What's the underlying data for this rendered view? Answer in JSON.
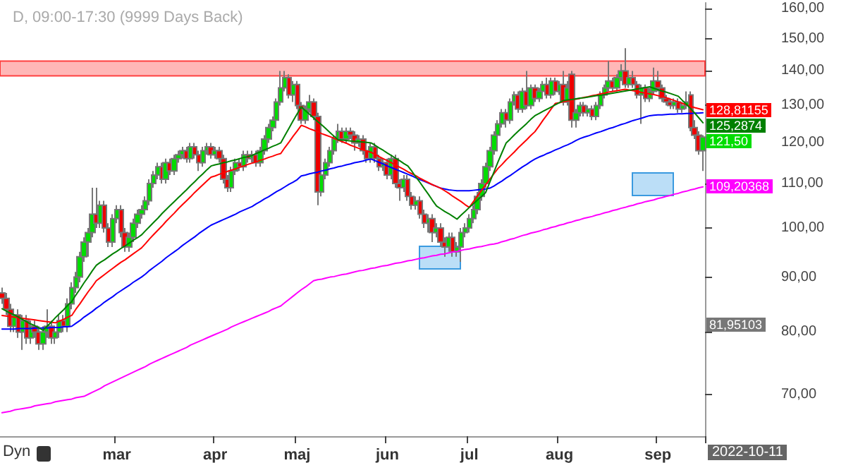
{
  "chart_data": {
    "type": "candlestick",
    "title": "D, 09:00-17:30 (9999 Days Back)",
    "categories": [
      null,
      null,
      null,
      null,
      null,
      null,
      null,
      null,
      null,
      null,
      null,
      null,
      null,
      null,
      null,
      null,
      null,
      null,
      null,
      null,
      null,
      null,
      null,
      null,
      null,
      null,
      null,
      null,
      "mar",
      null,
      null,
      null,
      null,
      null,
      null,
      null,
      null,
      null,
      null,
      null,
      null,
      null,
      null,
      null,
      null,
      null,
      null,
      null,
      null,
      null,
      null,
      null,
      "apr",
      null,
      null,
      null,
      null,
      null,
      null,
      null,
      null,
      null,
      null,
      null,
      null,
      null,
      null,
      null,
      null,
      null,
      null,
      null,
      "maj",
      null,
      null,
      null,
      null,
      null,
      null,
      null,
      null,
      null,
      null,
      null,
      null,
      null,
      null,
      null,
      null,
      null,
      null,
      null,
      null,
      null,
      "jun",
      null,
      null,
      null,
      null,
      null,
      null,
      null,
      null,
      null,
      null,
      null,
      null,
      null,
      null,
      null,
      null,
      null,
      null,
      null,
      "jul",
      null,
      null,
      null,
      null,
      null,
      null,
      null,
      null,
      null,
      null,
      null,
      null,
      null,
      null,
      null,
      null,
      null,
      null,
      null,
      null,
      null,
      "aug",
      null,
      null,
      null,
      null,
      null,
      null,
      null,
      null,
      null,
      null,
      null,
      null,
      null,
      null,
      null,
      null,
      null,
      null,
      null,
      null,
      null,
      null,
      null,
      "sep",
      null,
      null,
      null,
      null,
      null,
      null,
      null,
      null,
      null,
      null,
      null
    ],
    "ohlc": [
      [
        87,
        88,
        85,
        86
      ],
      [
        86,
        87,
        83,
        84
      ],
      [
        84,
        85,
        80,
        81
      ],
      [
        81,
        84,
        80,
        83
      ],
      [
        83,
        84,
        79,
        80
      ],
      [
        80,
        83,
        77,
        82
      ],
      [
        82,
        83,
        78,
        79
      ],
      [
        79,
        82,
        78,
        81
      ],
      [
        81,
        82,
        79,
        80
      ],
      [
        80,
        81,
        77,
        78
      ],
      [
        78,
        81,
        77,
        80
      ],
      [
        80,
        84,
        79,
        81
      ],
      [
        81,
        82,
        78,
        79
      ],
      [
        79,
        81,
        78,
        80
      ],
      [
        80,
        83,
        79,
        82
      ],
      [
        82,
        83,
        80,
        81
      ],
      [
        81,
        86,
        80,
        85
      ],
      [
        85,
        89,
        84,
        88
      ],
      [
        88,
        91,
        87,
        90
      ],
      [
        90,
        95,
        89,
        94
      ],
      [
        94,
        98,
        93,
        97
      ],
      [
        97,
        100,
        94,
        99
      ],
      [
        99,
        109,
        98,
        103
      ],
      [
        103,
        109,
        100,
        101
      ],
      [
        101,
        106,
        100,
        105
      ],
      [
        105,
        106,
        99,
        100
      ],
      [
        100,
        101,
        96,
        97
      ],
      [
        97,
        103,
        96,
        102
      ],
      [
        102,
        105,
        101,
        104
      ],
      [
        104,
        105,
        98,
        99
      ],
      [
        99,
        100,
        95,
        96
      ],
      [
        96,
        99,
        95,
        98
      ],
      [
        98,
        102,
        97,
        101
      ],
      [
        101,
        104,
        100,
        103
      ],
      [
        103,
        105,
        102,
        104
      ],
      [
        104,
        107,
        103,
        106
      ],
      [
        106,
        111,
        105,
        110
      ],
      [
        110,
        113,
        109,
        112
      ],
      [
        112,
        115,
        111,
        114
      ],
      [
        114,
        115,
        110,
        111
      ],
      [
        111,
        116,
        110,
        115
      ],
      [
        115,
        116,
        112,
        113
      ],
      [
        113,
        117,
        112,
        116
      ],
      [
        116,
        118,
        115,
        117
      ],
      [
        117,
        119,
        116,
        118
      ],
      [
        118,
        119,
        115,
        116
      ],
      [
        116,
        120,
        115,
        119
      ],
      [
        119,
        120,
        116,
        117
      ],
      [
        117,
        118,
        113,
        115
      ],
      [
        115,
        119,
        114,
        118
      ],
      [
        118,
        120,
        117,
        119
      ],
      [
        119,
        120,
        116,
        117
      ],
      [
        117,
        119,
        116,
        118
      ],
      [
        118,
        119,
        115,
        116
      ],
      [
        116,
        117,
        110,
        111
      ],
      [
        111,
        112,
        108,
        109
      ],
      [
        109,
        114,
        108,
        113
      ],
      [
        113,
        116,
        112,
        115
      ],
      [
        115,
        116,
        113,
        114
      ],
      [
        114,
        118,
        113,
        117
      ],
      [
        117,
        118,
        115,
        116
      ],
      [
        116,
        118,
        115,
        117
      ],
      [
        117,
        118,
        114,
        115
      ],
      [
        115,
        119,
        114,
        118
      ],
      [
        118,
        122,
        117,
        121
      ],
      [
        121,
        125,
        120,
        124
      ],
      [
        124,
        127,
        123,
        126
      ],
      [
        126,
        132,
        125,
        131
      ],
      [
        131,
        140,
        130,
        135
      ],
      [
        135,
        140,
        134,
        138
      ],
      [
        138,
        139,
        132,
        133
      ],
      [
        133,
        137,
        131,
        136
      ],
      [
        136,
        137,
        129,
        130
      ],
      [
        130,
        131,
        125,
        126
      ],
      [
        126,
        130,
        125,
        129
      ],
      [
        129,
        133,
        128,
        131
      ],
      [
        131,
        132,
        126,
        127
      ],
      [
        127,
        128,
        105,
        108
      ],
      [
        108,
        113,
        107,
        112
      ],
      [
        112,
        116,
        111,
        115
      ],
      [
        115,
        119,
        114,
        118
      ],
      [
        118,
        122,
        117,
        121
      ],
      [
        121,
        125,
        120,
        123
      ],
      [
        123,
        124,
        120,
        121
      ],
      [
        121,
        124,
        120,
        123
      ],
      [
        123,
        124,
        121,
        122
      ],
      [
        122,
        123,
        118,
        120
      ],
      [
        120,
        122,
        119,
        121
      ],
      [
        121,
        122,
        117,
        118
      ],
      [
        118,
        119,
        115,
        116
      ],
      [
        116,
        120,
        115,
        119
      ],
      [
        119,
        120,
        115,
        116
      ],
      [
        116,
        117,
        113,
        114
      ],
      [
        114,
        116,
        113,
        115
      ],
      [
        115,
        116,
        111,
        112
      ],
      [
        112,
        117,
        111,
        116
      ],
      [
        116,
        117,
        109,
        110
      ],
      [
        110,
        111,
        106,
        109
      ],
      [
        109,
        112,
        108,
        111
      ],
      [
        111,
        112,
        106,
        107
      ],
      [
        107,
        108,
        104,
        105
      ],
      [
        105,
        107,
        104,
        106
      ],
      [
        106,
        107,
        102,
        103
      ],
      [
        103,
        104,
        100,
        101
      ],
      [
        101,
        103,
        99,
        102
      ],
      [
        102,
        103,
        97,
        99
      ],
      [
        99,
        101,
        98,
        100
      ],
      [
        100,
        101,
        96,
        97
      ],
      [
        97,
        98,
        94,
        96
      ],
      [
        96,
        99,
        95,
        98
      ],
      [
        98,
        99,
        94,
        95
      ],
      [
        95,
        97,
        94,
        96
      ],
      [
        96,
        100,
        93,
        99
      ],
      [
        99,
        101,
        98,
        100
      ],
      [
        100,
        103,
        99,
        102
      ],
      [
        102,
        105,
        101,
        104
      ],
      [
        104,
        108,
        103,
        107
      ],
      [
        107,
        111,
        106,
        110
      ],
      [
        110,
        115,
        109,
        114
      ],
      [
        114,
        119,
        113,
        118
      ],
      [
        118,
        123,
        117,
        122
      ],
      [
        122,
        126,
        121,
        125
      ],
      [
        125,
        129,
        124,
        128
      ],
      [
        128,
        129,
        124,
        126
      ],
      [
        126,
        132,
        125,
        131
      ],
      [
        131,
        134,
        130,
        133
      ],
      [
        133,
        134,
        128,
        129
      ],
      [
        129,
        135,
        128,
        134
      ],
      [
        134,
        140,
        129,
        130
      ],
      [
        130,
        136,
        129,
        135
      ],
      [
        135,
        136,
        131,
        132
      ],
      [
        132,
        135,
        131,
        134
      ],
      [
        134,
        137,
        133,
        136
      ],
      [
        136,
        138,
        132,
        133
      ],
      [
        133,
        138,
        132,
        137
      ],
      [
        137,
        138,
        133,
        134
      ],
      [
        134,
        137,
        133,
        136
      ],
      [
        136,
        140,
        130,
        131
      ],
      [
        131,
        137,
        130,
        135
      ],
      [
        139,
        140,
        124,
        126
      ],
      [
        126,
        129,
        124,
        128
      ],
      [
        128,
        131,
        127,
        130
      ],
      [
        130,
        131,
        127,
        128
      ],
      [
        128,
        130,
        127,
        129
      ],
      [
        129,
        130,
        126,
        127
      ],
      [
        127,
        131,
        126,
        130
      ],
      [
        130,
        134,
        129,
        133
      ],
      [
        133,
        136,
        132,
        135
      ],
      [
        135,
        143,
        134,
        137
      ],
      [
        137,
        138,
        134,
        135
      ],
      [
        135,
        139,
        134,
        138
      ],
      [
        138,
        142,
        137,
        140
      ],
      [
        140,
        147,
        135,
        136
      ],
      [
        136,
        139,
        135,
        138
      ],
      [
        138,
        140,
        135,
        136
      ],
      [
        136,
        137,
        132,
        133
      ],
      [
        133,
        136,
        125,
        135
      ],
      [
        135,
        136,
        131,
        132
      ],
      [
        132,
        135,
        131,
        134
      ],
      [
        134,
        141,
        133,
        137
      ],
      [
        137,
        140,
        134,
        135
      ],
      [
        135,
        136,
        131,
        132
      ],
      [
        132,
        133,
        130,
        131
      ],
      [
        131,
        132,
        129,
        130
      ],
      [
        130,
        132,
        129,
        131
      ],
      [
        131,
        132,
        128,
        129
      ],
      [
        129,
        131,
        128,
        130
      ],
      [
        130,
        134,
        129,
        131
      ],
      [
        133,
        134,
        123,
        124
      ],
      [
        124,
        126,
        121,
        122
      ],
      [
        122,
        123,
        117,
        118
      ],
      [
        118,
        122,
        113,
        121.5
      ]
    ],
    "value_labels": [
      null,
      null,
      null,
      null,
      null,
      null,
      null,
      null,
      null,
      null,
      null,
      null,
      null,
      null,
      null,
      null,
      null,
      null,
      null,
      null,
      null,
      null,
      null,
      null,
      null,
      null,
      null,
      null,
      null,
      null,
      null,
      null,
      null,
      null,
      null,
      null,
      null,
      null,
      null,
      null,
      null,
      null,
      null,
      null,
      null,
      null,
      null,
      null,
      null,
      null,
      null,
      null,
      null,
      null,
      null,
      null,
      null,
      null,
      null,
      null,
      null,
      null,
      null,
      null,
      null,
      null,
      null,
      null,
      null,
      null,
      null,
      null,
      null,
      null,
      null,
      null,
      null,
      null,
      null,
      null,
      null,
      null,
      null,
      null,
      null,
      null,
      null,
      null,
      null,
      null,
      null,
      null,
      null,
      null,
      null,
      null,
      null,
      null,
      null,
      null,
      null,
      null,
      null,
      null,
      null,
      null,
      null,
      null,
      null,
      null,
      null,
      null,
      null,
      null,
      null,
      null,
      null,
      null,
      null,
      null,
      null,
      null,
      null,
      null,
      null,
      null,
      null,
      null,
      null,
      null,
      null,
      null,
      null,
      null,
      null,
      null,
      null,
      null,
      null,
      null,
      null,
      null,
      null,
      null,
      null,
      null,
      null,
      null,
      null,
      null,
      null,
      null,
      null,
      null,
      null,
      null,
      null,
      null,
      null,
      null,
      null,
      null,
      null,
      null,
      null,
      null,
      null,
      null,
      null,
      null,
      null,
      "121,50"
    ],
    "series": [
      {
        "type": "line",
        "color": "#ff00ff",
        "values": [
          67.3,
          67.4,
          67.5,
          67.7,
          67.8,
          67.9,
          68.0,
          68.1,
          68.3,
          68.4,
          68.5,
          68.6,
          68.7,
          68.9,
          69.0,
          69.1,
          69.2,
          69.3,
          69.5,
          69.6,
          69.7,
          70.0,
          70.3,
          70.6,
          70.9,
          71.3,
          71.6,
          71.9,
          72.2,
          72.5,
          72.8,
          73.1,
          73.4,
          73.7,
          74.0,
          74.3,
          74.7,
          75.0,
          75.3,
          75.6,
          75.9,
          76.2,
          76.5,
          76.8,
          77.1,
          77.4,
          77.8,
          78.1,
          78.4,
          78.7,
          79.0,
          79.3,
          79.6,
          79.9,
          80.2,
          80.5,
          80.9,
          81.2,
          81.5,
          81.8,
          82.1,
          82.4,
          82.7,
          83.0,
          83.3,
          83.6,
          84.0,
          84.3,
          84.6,
          85.2,
          85.8,
          86.4,
          87.0,
          87.6,
          88.1,
          88.7,
          89.3,
          89.5,
          89.6,
          89.8,
          90.0,
          90.1,
          90.3,
          90.5,
          90.6,
          90.8,
          91.0,
          91.2,
          91.3,
          91.5,
          91.7,
          91.8,
          92.0,
          92.2,
          92.3,
          92.5,
          92.7,
          92.8,
          93.0,
          93.2,
          93.3,
          93.5,
          93.7,
          93.8,
          94.0,
          94.2,
          94.3,
          94.5,
          94.6,
          94.8,
          95.0,
          95.1,
          95.3,
          95.5,
          95.6,
          95.8,
          96.0,
          96.1,
          96.3,
          96.5,
          96.6,
          96.8,
          97.1,
          97.3,
          97.6,
          97.8,
          98.1,
          98.4,
          98.6,
          98.9,
          99.1,
          99.3,
          99.6,
          99.8,
          100.1,
          100.3,
          100.6,
          100.8,
          101.1,
          101.3,
          101.6,
          101.8,
          102.1,
          102.3,
          102.5,
          102.8,
          103.0,
          103.3,
          103.5,
          103.8,
          104.0,
          104.3,
          104.5,
          104.8,
          105.0,
          105.3,
          105.5,
          105.8,
          106.0,
          106.2,
          106.5,
          106.7,
          107.0,
          107.2,
          107.5,
          107.7,
          108.0,
          108.2,
          108.5,
          108.7,
          109.0,
          109.20368
        ],
        "value_labels": [
          null,
          null,
          null,
          null,
          null,
          null,
          null,
          null,
          null,
          null,
          null,
          null,
          null,
          null,
          null,
          null,
          null,
          null,
          null,
          null,
          null,
          null,
          null,
          null,
          null,
          null,
          null,
          null,
          null,
          null,
          null,
          null,
          null,
          null,
          null,
          null,
          null,
          null,
          null,
          null,
          null,
          null,
          null,
          null,
          null,
          null,
          null,
          null,
          null,
          null,
          null,
          null,
          null,
          null,
          null,
          null,
          null,
          null,
          null,
          null,
          null,
          null,
          null,
          null,
          null,
          null,
          null,
          null,
          null,
          null,
          null,
          null,
          null,
          null,
          null,
          null,
          null,
          null,
          null,
          null,
          null,
          null,
          null,
          null,
          null,
          null,
          null,
          null,
          null,
          null,
          null,
          null,
          null,
          null,
          null,
          null,
          null,
          null,
          null,
          null,
          null,
          null,
          null,
          null,
          null,
          null,
          null,
          null,
          null,
          null,
          null,
          null,
          null,
          null,
          null,
          null,
          null,
          null,
          null,
          null,
          null,
          null,
          null,
          null,
          null,
          null,
          null,
          null,
          null,
          null,
          null,
          null,
          null,
          null,
          null,
          null,
          null,
          null,
          null,
          null,
          null,
          null,
          null,
          null,
          null,
          null,
          null,
          null,
          null,
          null,
          null,
          null,
          null,
          null,
          null,
          null,
          null,
          null,
          null,
          null,
          null,
          null,
          null,
          null,
          null,
          null,
          null,
          null,
          null,
          null,
          null,
          "109,20368"
        ]
      },
      {
        "type": "line",
        "color": "#0000ff",
        "values": [
          80.5,
          80.5,
          80.5,
          80.5,
          80.6,
          80.6,
          80.6,
          80.6,
          80.7,
          80.7,
          80.7,
          80.7,
          80.8,
          80.8,
          80.8,
          80.9,
          80.9,
          81.0,
          81.5,
          82.0,
          82.6,
          83.1,
          83.6,
          84.2,
          84.7,
          85.3,
          85.8,
          86.3,
          86.9,
          87.4,
          87.9,
          88.4,
          89.0,
          89.5,
          90.0,
          90.6,
          91.3,
          91.9,
          92.5,
          93.1,
          93.8,
          94.4,
          95.0,
          95.6,
          96.3,
          96.9,
          97.5,
          98.1,
          98.8,
          99.4,
          100.0,
          100.6,
          101.0,
          101.4,
          101.8,
          102.2,
          102.6,
          103.0,
          103.5,
          103.9,
          104.3,
          104.7,
          105.3,
          105.8,
          106.4,
          106.9,
          107.5,
          108.1,
          108.6,
          109.2,
          109.8,
          110.3,
          110.9,
          111.8,
          112.0,
          112.3,
          112.5,
          112.7,
          113.0,
          113.2,
          113.5,
          113.7,
          114.0,
          114.2,
          114.5,
          114.7,
          115.0,
          115.2,
          115.4,
          115.7,
          115.9,
          115.5,
          115.1,
          114.7,
          114.2,
          113.8,
          113.4,
          113.0,
          112.6,
          112.2,
          111.8,
          111.3,
          110.9,
          110.5,
          110.1,
          109.7,
          109.3,
          108.9,
          108.7,
          108.5,
          108.4,
          108.3,
          108.3,
          108.3,
          108.3,
          108.4,
          108.5,
          108.6,
          108.7,
          108.9,
          109.4,
          110.0,
          110.6,
          111.3,
          111.9,
          112.6,
          113.3,
          114.0,
          114.6,
          115.3,
          115.9,
          116.4,
          116.8,
          117.3,
          117.7,
          118.2,
          118.6,
          119.1,
          119.5,
          120.0,
          120.6,
          121.1,
          121.5,
          121.8,
          122.2,
          122.6,
          122.9,
          123.3,
          123.7,
          124.0,
          124.4,
          124.8,
          125.1,
          125.5,
          125.9,
          126.2,
          126.5,
          126.9,
          127.2,
          127.3,
          127.4,
          127.4,
          127.5,
          127.6,
          127.6,
          127.7,
          127.7,
          127.8,
          127.8,
          127.9,
          127.9,
          128.0
        ]
      },
      {
        "type": "line",
        "color": "#ff0000",
        "values": [
          82.9,
          82.8,
          82.7,
          82.6,
          82.5,
          82.4,
          82.3,
          82.2,
          82.1,
          82.0,
          81.9,
          81.8,
          81.7,
          81.6,
          81.9,
          82.2,
          82.6,
          82.9,
          84.0,
          85.0,
          86.1,
          87.2,
          88.2,
          89.3,
          89.9,
          90.5,
          91.1,
          91.7,
          92.3,
          92.9,
          93.4,
          94.0,
          94.6,
          95.2,
          95.8,
          96.7,
          97.7,
          98.6,
          99.5,
          100.4,
          101.4,
          102.3,
          103.2,
          104.2,
          105.1,
          106.0,
          106.9,
          107.9,
          108.8,
          109.7,
          110.6,
          111.5,
          111.8,
          112.2,
          112.5,
          112.9,
          113.2,
          113.5,
          113.9,
          114.2,
          114.6,
          114.9,
          115.2,
          115.6,
          115.9,
          116.3,
          116.6,
          117.0,
          117.3,
          118.8,
          120.2,
          121.7,
          123.1,
          124.6,
          124.2,
          123.7,
          123.3,
          122.9,
          122.4,
          122.0,
          121.6,
          121.2,
          120.7,
          120.3,
          119.9,
          119.4,
          119.0,
          118.6,
          118.2,
          117.9,
          117.6,
          117.1,
          116.5,
          116.0,
          115.5,
          115.0,
          114.4,
          113.9,
          113.4,
          112.8,
          112.3,
          111.8,
          111.2,
          110.7,
          110.2,
          109.7,
          109.3,
          108.9,
          108.3,
          107.7,
          107.0,
          106.4,
          105.8,
          105.1,
          104.5,
          105.8,
          107.1,
          108.4,
          109.7,
          111.0,
          112.3,
          113.6,
          114.6,
          115.7,
          116.7,
          117.7,
          118.8,
          119.8,
          120.8,
          121.9,
          122.9,
          124.4,
          126.0,
          127.5,
          129.1,
          130.6,
          130.8,
          131.1,
          131.3,
          131.5,
          131.8,
          132.0,
          132.3,
          132.5,
          132.8,
          133.0,
          133.3,
          133.5,
          133.8,
          134.0,
          134.2,
          134.4,
          134.6,
          134.4,
          134.2,
          134.0,
          133.7,
          133.5,
          133.3,
          133.1,
          132.8,
          132.6,
          132.2,
          131.8,
          131.4,
          131.0,
          130.6,
          130.2,
          129.8,
          129.4,
          129.1,
          128.81155
        ],
        "value_labels": [
          null,
          null,
          null,
          null,
          null,
          null,
          null,
          null,
          null,
          null,
          null,
          null,
          null,
          null,
          null,
          null,
          null,
          null,
          null,
          null,
          null,
          null,
          null,
          null,
          null,
          null,
          null,
          null,
          null,
          null,
          null,
          null,
          null,
          null,
          null,
          null,
          null,
          null,
          null,
          null,
          null,
          null,
          null,
          null,
          null,
          null,
          null,
          null,
          null,
          null,
          null,
          null,
          null,
          null,
          null,
          null,
          null,
          null,
          null,
          null,
          null,
          null,
          null,
          null,
          null,
          null,
          null,
          null,
          null,
          null,
          null,
          null,
          null,
          null,
          null,
          null,
          null,
          null,
          null,
          null,
          null,
          null,
          null,
          null,
          null,
          null,
          null,
          null,
          null,
          null,
          null,
          null,
          null,
          null,
          null,
          null,
          null,
          null,
          null,
          null,
          null,
          null,
          null,
          null,
          null,
          null,
          null,
          null,
          null,
          null,
          null,
          null,
          null,
          null,
          null,
          null,
          null,
          null,
          null,
          null,
          null,
          null,
          null,
          null,
          null,
          null,
          null,
          null,
          null,
          null,
          null,
          null,
          null,
          null,
          null,
          null,
          null,
          null,
          null,
          null,
          null,
          null,
          null,
          null,
          null,
          null,
          null,
          null,
          null,
          null,
          null,
          null,
          null,
          null,
          null,
          null,
          null,
          null,
          null,
          null,
          null,
          null,
          null,
          null,
          null,
          null,
          null,
          null,
          null,
          null,
          null,
          "128,81155"
        ]
      },
      {
        "type": "line",
        "color": "#008000",
        "values": [
          84.1,
          83.7,
          83.3,
          83.0,
          82.6,
          82.2,
          81.8,
          81.4,
          81.1,
          80.7,
          80.3,
          81.0,
          81.7,
          82.5,
          83.2,
          83.9,
          84.7,
          85.4,
          86.6,
          87.7,
          88.9,
          90.0,
          91.2,
          92.3,
          92.9,
          93.4,
          94.0,
          94.6,
          95.1,
          95.7,
          96.2,
          96.8,
          97.4,
          97.9,
          98.5,
          99.4,
          100.3,
          101.2,
          102.1,
          103.1,
          104.0,
          104.9,
          105.8,
          106.7,
          107.6,
          108.5,
          109.5,
          110.4,
          111.4,
          112.3,
          113.3,
          114.2,
          114.5,
          114.7,
          115.0,
          115.2,
          115.5,
          115.7,
          116.0,
          116.3,
          116.5,
          116.8,
          117.3,
          117.7,
          118.2,
          118.6,
          119.1,
          119.5,
          120.0,
          121.9,
          123.8,
          125.8,
          127.7,
          129.6,
          128.6,
          127.6,
          126.6,
          125.6,
          124.7,
          123.7,
          122.7,
          121.7,
          120.8,
          120.7,
          120.6,
          120.5,
          120.4,
          120.3,
          120.2,
          120.1,
          120.0,
          119.4,
          118.7,
          118.1,
          117.4,
          116.8,
          116.1,
          115.5,
          114.8,
          114.2,
          112.9,
          111.5,
          110.2,
          108.8,
          107.5,
          106.1,
          104.8,
          104.2,
          103.6,
          103.1,
          102.5,
          101.9,
          102.8,
          103.6,
          104.5,
          105.3,
          106.2,
          107.0,
          107.9,
          110.3,
          112.7,
          115.2,
          117.6,
          120.0,
          121.0,
          122.1,
          123.1,
          124.1,
          125.1,
          126.2,
          127.2,
          127.8,
          128.4,
          129.0,
          129.6,
          130.2,
          130.8,
          131.4,
          131.6,
          131.7,
          131.9,
          132.1,
          132.2,
          132.4,
          132.6,
          132.8,
          132.9,
          133.1,
          133.3,
          133.5,
          133.7,
          133.9,
          134.1,
          134.3,
          134.5,
          134.7,
          134.9,
          135.1,
          135.3,
          134.9,
          134.5,
          134.1,
          133.8,
          133.4,
          133.0,
          132.6,
          131.4,
          130.3,
          129.1,
          127.9,
          126.6,
          125.2874
        ],
        "value_labels": [
          null,
          null,
          null,
          null,
          null,
          null,
          null,
          null,
          null,
          null,
          null,
          null,
          null,
          null,
          null,
          null,
          null,
          null,
          null,
          null,
          null,
          null,
          null,
          null,
          null,
          null,
          null,
          null,
          null,
          null,
          null,
          null,
          null,
          null,
          null,
          null,
          null,
          null,
          null,
          null,
          null,
          null,
          null,
          null,
          null,
          null,
          null,
          null,
          null,
          null,
          null,
          null,
          null,
          null,
          null,
          null,
          null,
          null,
          null,
          null,
          null,
          null,
          null,
          null,
          null,
          null,
          null,
          null,
          null,
          null,
          null,
          null,
          null,
          null,
          null,
          null,
          null,
          null,
          null,
          null,
          null,
          null,
          null,
          null,
          null,
          null,
          null,
          null,
          null,
          null,
          null,
          null,
          null,
          null,
          null,
          null,
          null,
          null,
          null,
          null,
          null,
          null,
          null,
          null,
          null,
          null,
          null,
          null,
          null,
          null,
          null,
          null,
          null,
          null,
          null,
          null,
          null,
          null,
          null,
          null,
          null,
          null,
          null,
          null,
          null,
          null,
          null,
          null,
          null,
          null,
          null,
          null,
          null,
          null,
          null,
          null,
          null,
          null,
          null,
          null,
          null,
          null,
          null,
          null,
          null,
          null,
          null,
          null,
          null,
          null,
          null,
          null,
          null,
          null,
          null,
          null,
          null,
          null,
          null,
          null,
          null,
          null,
          null,
          null,
          null,
          null,
          null,
          null,
          null,
          null,
          null,
          "125,2874"
        ]
      }
    ],
    "log": true,
    "ylim": [
      64,
      162
    ],
    "yticks": [
      {
        "value": 70,
        "label": "70,00"
      },
      {
        "value": 80,
        "label": "80,00"
      },
      {
        "value": 90,
        "label": "90,00"
      },
      {
        "value": 100,
        "label": "100,00"
      },
      {
        "value": 110,
        "label": "110,00"
      },
      {
        "value": 120,
        "label": "120,00"
      },
      {
        "value": 130,
        "label": "130,00"
      },
      {
        "value": 140,
        "label": "140,00"
      },
      {
        "value": 150,
        "label": "150,00"
      },
      {
        "value": 160,
        "label": "160,00"
      }
    ],
    "bands": [
      {
        "axis": "y",
        "from": 138.5,
        "to": 143,
        "color": "#ff9999"
      }
    ],
    "annotations": [
      "Dyn",
      "2022-10-11",
      "81,95103"
    ]
  }
}
